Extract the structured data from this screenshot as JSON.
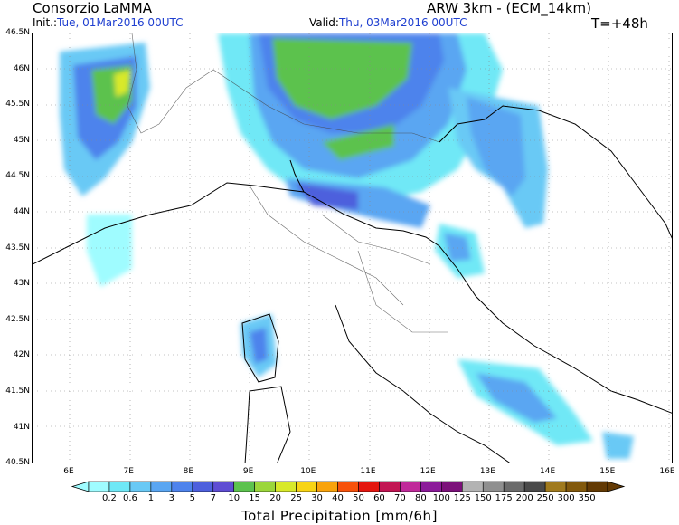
{
  "header": {
    "org": "Consorzio LaMMA",
    "model": "ARW 3km  -  (ECM_14km)",
    "init_label": "Init.:",
    "init_value": "Tue, 01Mar2016  00UTC",
    "valid_label": "Valid:",
    "valid_value": "Thu, 03Mar2016  00UTC",
    "lead": "T=+48h"
  },
  "axes": {
    "lat_labels": [
      "46.5N",
      "46N",
      "45.5N",
      "45N",
      "44.5N",
      "44N",
      "43.5N",
      "43N",
      "42.5N",
      "42N",
      "41.5N",
      "41N",
      "40.5N"
    ],
    "lon_labels": [
      "6E",
      "7E",
      "8E",
      "9E",
      "10E",
      "11E",
      "12E",
      "13E",
      "14E",
      "15E",
      "16E"
    ]
  },
  "colorbar": {
    "title": "Total Precipitation [mm/6h]",
    "labels": [
      "0.2",
      "0.6",
      "1",
      "3",
      "5",
      "7",
      "10",
      "15",
      "20",
      "25",
      "30",
      "40",
      "50",
      "60",
      "70",
      "80",
      "100",
      "125",
      "150",
      "175",
      "200",
      "250",
      "300",
      "350"
    ],
    "colors": [
      "#9ffcff",
      "#6fe8f6",
      "#69c9f5",
      "#5aa6f2",
      "#4e83ec",
      "#4e60dd",
      "#5f4dd3",
      "#5cc24e",
      "#9bd63b",
      "#d8e92a",
      "#f8d414",
      "#f9a30c",
      "#f7520b",
      "#e4160f",
      "#c21553",
      "#c02a9a",
      "#8c1b9a",
      "#7c117a",
      "#b3b3b3",
      "#8f8f8f",
      "#6b6b6b",
      "#4a4a4a",
      "#a07a1e",
      "#82590d",
      "#633a04"
    ],
    "arrow_left_color": "#9ffcff",
    "arrow_right_color": "#633a04"
  }
}
